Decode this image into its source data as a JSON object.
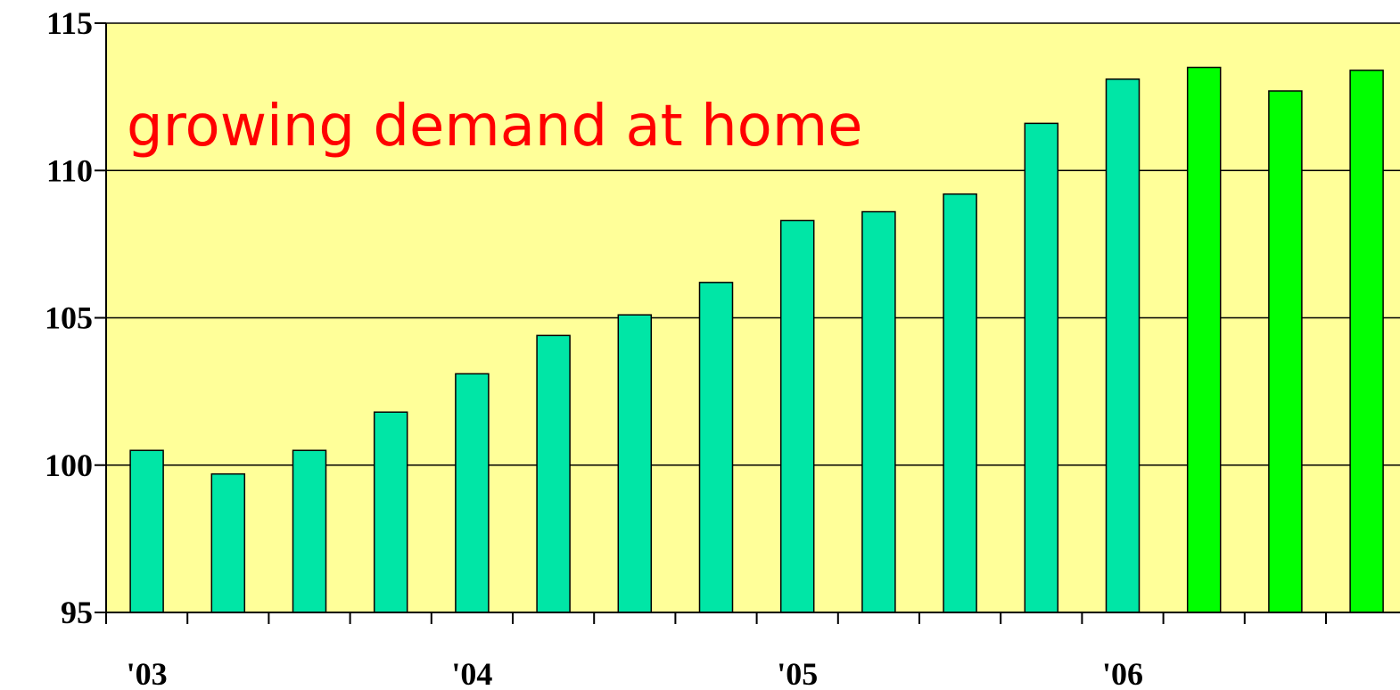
{
  "chart_data": {
    "type": "bar",
    "title": "",
    "xlabel": "",
    "ylabel": "",
    "annotation": "growing demand at home",
    "ylim": [
      95,
      115
    ],
    "yticks": [
      {
        "value": 95,
        "label": "95"
      },
      {
        "value": 100,
        "label": "100"
      },
      {
        "value": 105,
        "label": "105"
      },
      {
        "value": 110,
        "label": "110"
      },
      {
        "value": 115,
        "label": "115"
      }
    ],
    "xtick_labels": [
      {
        "quarter_index": 0,
        "label": "'03"
      },
      {
        "quarter_index": 4,
        "label": "'04"
      },
      {
        "quarter_index": 8,
        "label": "'05"
      },
      {
        "quarter_index": 12,
        "label": "'06"
      }
    ],
    "values": [
      100.5,
      99.7,
      100.5,
      101.8,
      103.1,
      104.4,
      105.1,
      106.2,
      108.3,
      108.6,
      109.2,
      111.6,
      113.1,
      113.5,
      112.7,
      113.4
    ],
    "grid": true,
    "legend": false,
    "colors": {
      "background": "#ffff99",
      "bar_actual": "#00e6a6",
      "bar_highlight": "#00ff00",
      "bar_outline": "#000000",
      "gridline": "#000000",
      "annotation_text": "#ff0000"
    },
    "highlighted_indices": [
      13,
      14,
      15
    ]
  }
}
